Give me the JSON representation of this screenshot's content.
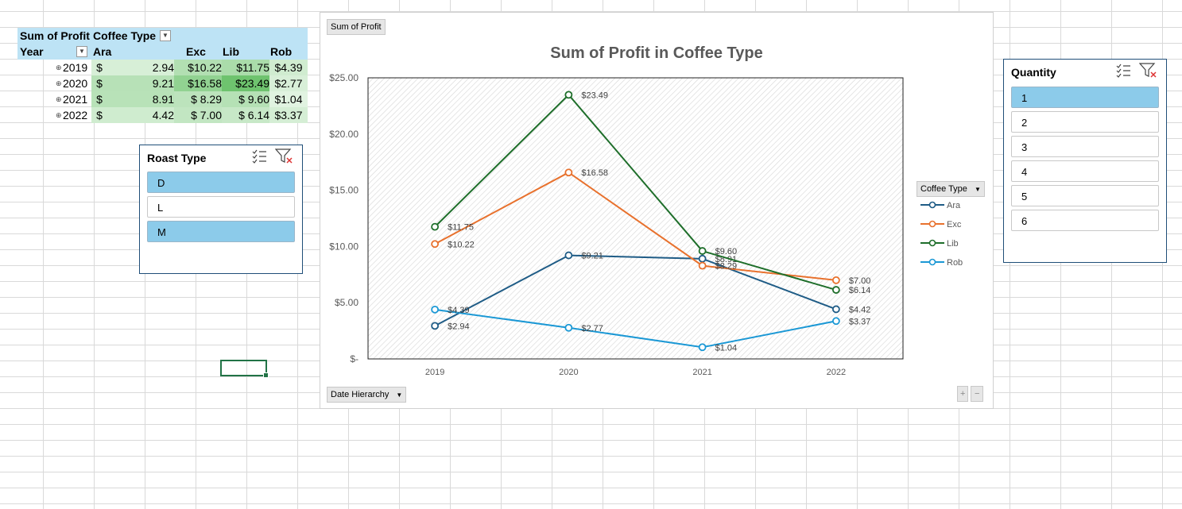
{
  "pivot": {
    "header1": {
      "measure": "Sum of Profit",
      "column_field": "Coffee Type"
    },
    "header2": {
      "row_field": "Year",
      "columns": [
        "Ara",
        "Exc",
        "Lib",
        "Rob"
      ]
    },
    "rows": [
      {
        "year": "2019",
        "cur": "$",
        "ara": "2.94",
        "exc": "$10.22",
        "lib": "$11.75",
        "rob": "$4.39"
      },
      {
        "year": "2020",
        "cur": "$",
        "ara": "9.21",
        "exc": "$16.58",
        "lib": "$23.49",
        "rob": "$2.77"
      },
      {
        "year": "2021",
        "cur": "$",
        "ara": "8.91",
        "exc": "$  8.29",
        "lib": "$  9.60",
        "rob": "$1.04"
      },
      {
        "year": "2022",
        "cur": "$",
        "ara": "4.42",
        "exc": "$  7.00",
        "lib": "$  6.14",
        "rob": "$3.37"
      }
    ],
    "expander_symbol": "⊕"
  },
  "roast_slicer": {
    "title": "Roast Type",
    "items": [
      {
        "label": "D",
        "selected": true
      },
      {
        "label": "L",
        "selected": false
      },
      {
        "label": "M",
        "selected": true
      }
    ]
  },
  "quantity_slicer": {
    "title": "Quantity",
    "items": [
      {
        "label": "1",
        "selected": true
      },
      {
        "label": "2",
        "selected": false
      },
      {
        "label": "3",
        "selected": false
      },
      {
        "label": "4",
        "selected": false
      },
      {
        "label": "5",
        "selected": false
      },
      {
        "label": "6",
        "selected": false
      }
    ]
  },
  "chart": {
    "value_field_button": "Sum of Profit",
    "axis_field_button": "Date Hierarchy",
    "legend_field_button": "Coffee Type",
    "zoom_plus": "+",
    "zoom_minus": "−"
  },
  "chart_data": {
    "type": "line",
    "title": "Sum of Profit in Coffee Type",
    "categories": [
      "2019",
      "2020",
      "2021",
      "2022"
    ],
    "ylim": [
      0,
      25
    ],
    "yticks": [
      "$-",
      "$5.00",
      "$10.00",
      "$15.00",
      "$20.00",
      "$25.00"
    ],
    "legend_title": "Coffee Type",
    "legend_position": "right",
    "series": [
      {
        "name": "Ara",
        "color": "#1f5c86",
        "values": [
          2.94,
          9.21,
          8.91,
          4.42
        ],
        "labels": [
          "$2.94",
          "$9.21",
          "$8.91",
          "$4.42"
        ]
      },
      {
        "name": "Exc",
        "color": "#e8712d",
        "values": [
          10.22,
          16.58,
          8.29,
          7.0
        ],
        "labels": [
          "$10.22",
          "$16.58",
          "$8.29",
          "$7.00"
        ]
      },
      {
        "name": "Lib",
        "color": "#1e6e2a",
        "values": [
          11.75,
          23.49,
          9.6,
          6.14
        ],
        "labels": [
          "$11.75",
          "$23.49",
          "$9.60",
          "$6.14"
        ]
      },
      {
        "name": "Rob",
        "color": "#1b98d5",
        "values": [
          4.39,
          2.77,
          1.04,
          3.37
        ],
        "labels": [
          "$4.39",
          "$2.77",
          "$1.04",
          "$3.37"
        ]
      }
    ]
  }
}
